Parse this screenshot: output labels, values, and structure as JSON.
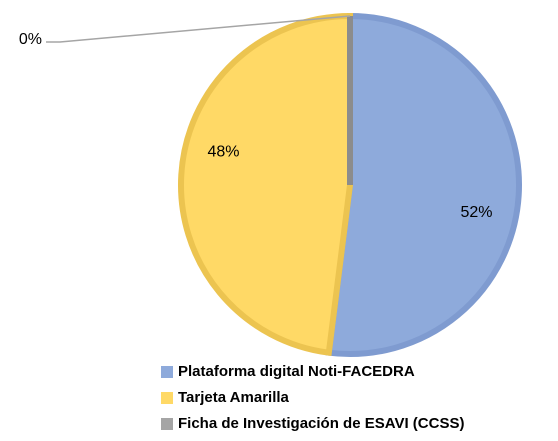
{
  "chart_data": {
    "type": "pie",
    "categories": [
      "Plataforma digital Noti-FACEDRA",
      "Tarjeta Amarilla",
      "Ficha de Investigación de ESAVI (CCSS)"
    ],
    "values": [
      52,
      48,
      0
    ],
    "value_labels": [
      "52%",
      "48%",
      "0%"
    ],
    "colors": [
      "#8eaadb",
      "#ffd966",
      "#a5a5a5"
    ],
    "border_colors": [
      "#7f9bd0",
      "#ecc450",
      "#8c8c8c"
    ],
    "legend": "bottom"
  }
}
